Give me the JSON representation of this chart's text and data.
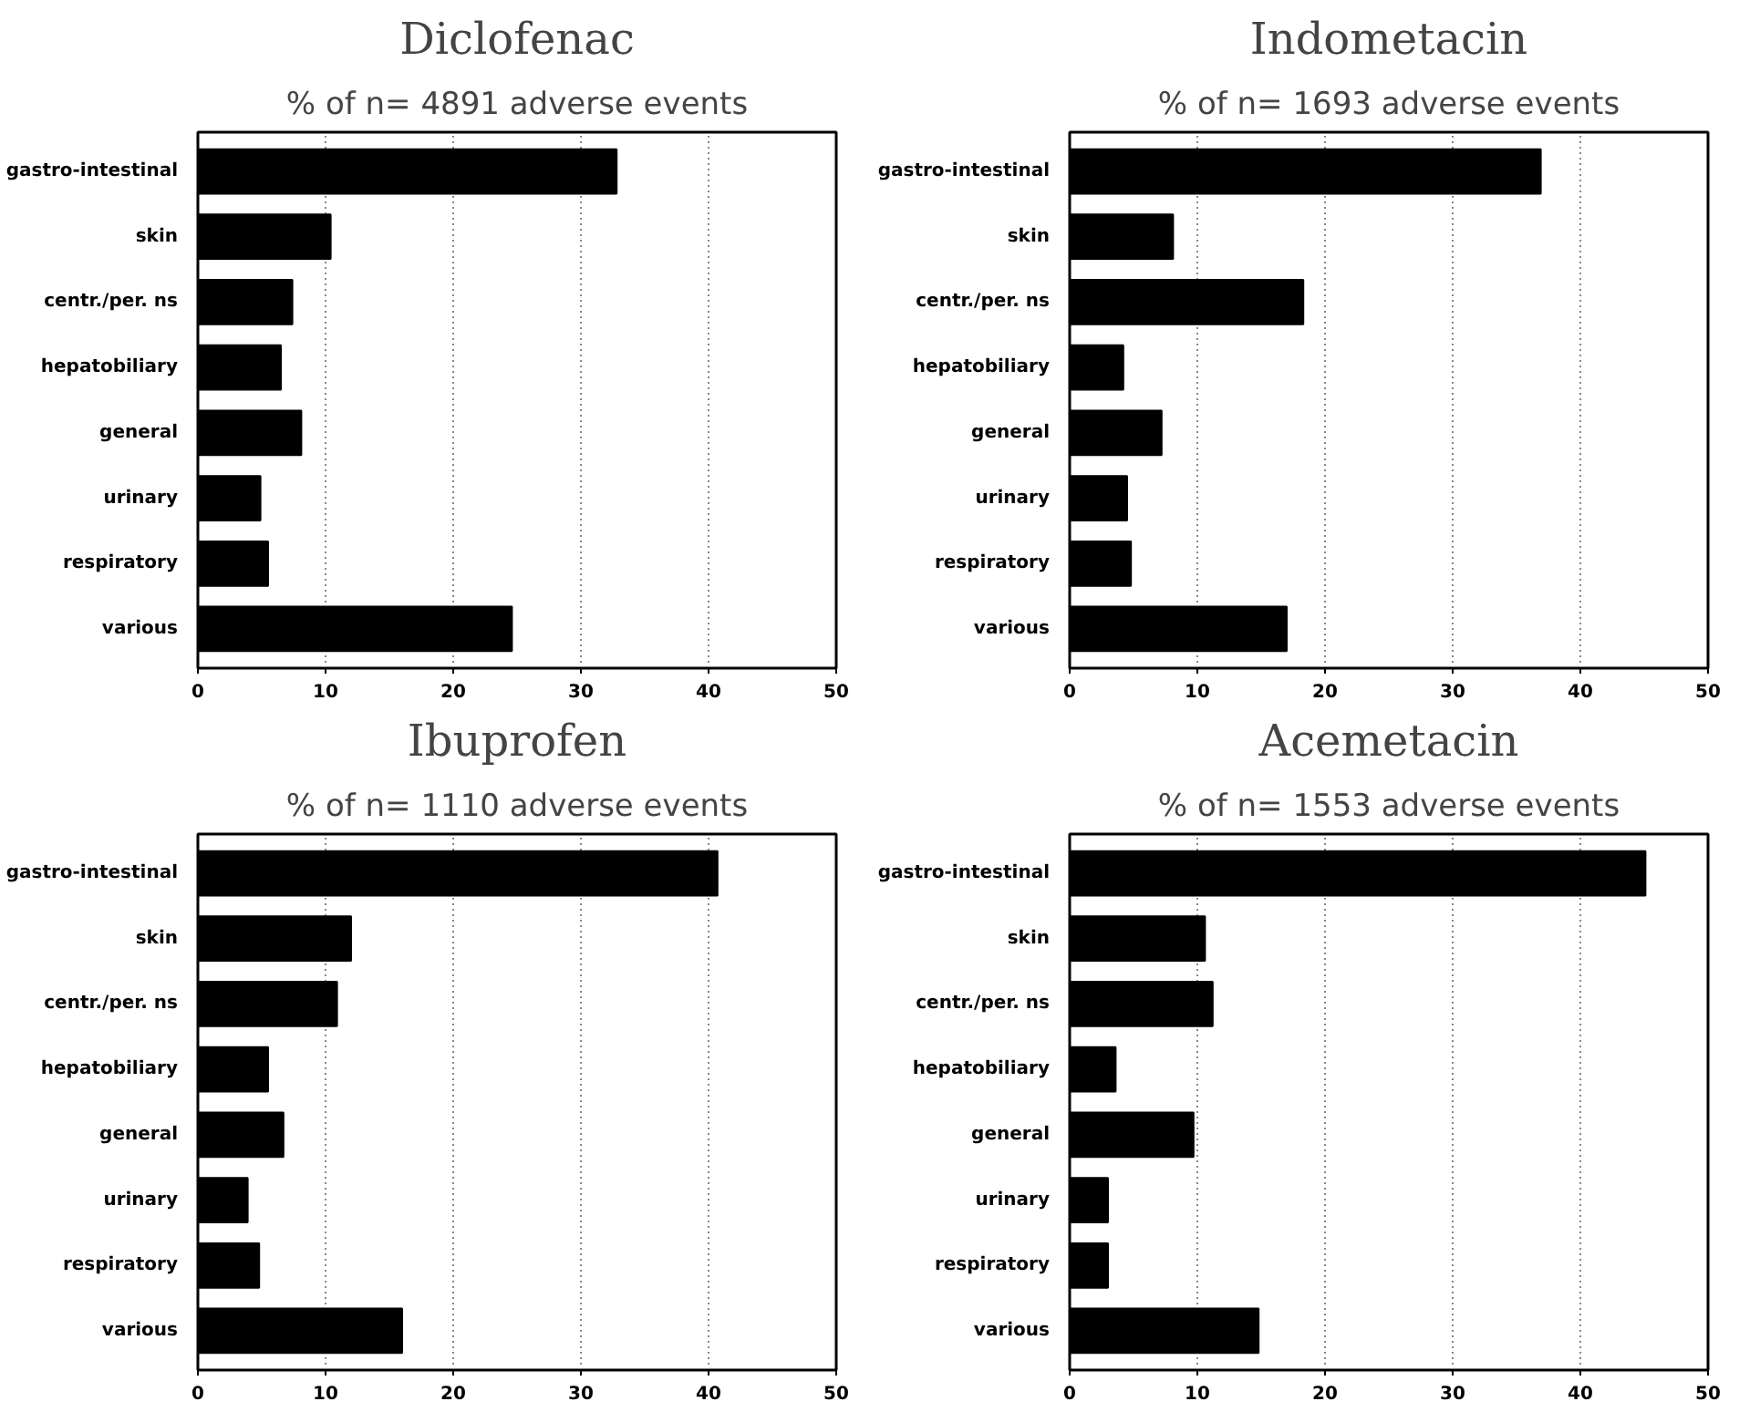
{
  "chart_data": [
    {
      "type": "bar",
      "orientation": "horizontal",
      "title": "Diclofenac",
      "subtitle": "% of n= 4891 adverse events",
      "categories": [
        "gastro-intestinal",
        "skin",
        "centr./per. ns",
        "hepatobiliary",
        "general",
        "urinary",
        "respiratory",
        "various"
      ],
      "values": [
        32.8,
        10.4,
        7.4,
        6.5,
        8.1,
        4.9,
        5.5,
        24.6
      ],
      "color": "#000000",
      "xlim": [
        0,
        50
      ],
      "xticks": [
        0,
        10,
        20,
        30,
        40,
        50
      ],
      "grid": "x"
    },
    {
      "type": "bar",
      "orientation": "horizontal",
      "title": "Indometacin",
      "subtitle": "% of n= 1693 adverse events",
      "categories": [
        "gastro-intestinal",
        "skin",
        "centr./per. ns",
        "hepatobiliary",
        "general",
        "urinary",
        "respiratory",
        "various"
      ],
      "values": [
        36.9,
        8.1,
        18.3,
        4.2,
        7.2,
        4.5,
        4.8,
        17.0
      ],
      "color": "#000000",
      "xlim": [
        0,
        50
      ],
      "xticks": [
        0,
        10,
        20,
        30,
        40,
        50
      ],
      "grid": "x"
    },
    {
      "type": "bar",
      "orientation": "horizontal",
      "title": "Ibuprofen",
      "subtitle": "% of n= 1110 adverse events",
      "categories": [
        "gastro-intestinal",
        "skin",
        "centr./per. ns",
        "hepatobiliary",
        "general",
        "urinary",
        "respiratory",
        "various"
      ],
      "values": [
        40.7,
        12.0,
        10.9,
        5.5,
        6.7,
        3.9,
        4.8,
        16.0
      ],
      "color": "#000000",
      "xlim": [
        0,
        50
      ],
      "xticks": [
        0,
        10,
        20,
        30,
        40,
        50
      ],
      "grid": "x"
    },
    {
      "type": "bar",
      "orientation": "horizontal",
      "title": "Acemetacin",
      "subtitle": "% of n= 1553 adverse events",
      "categories": [
        "gastro-intestinal",
        "skin",
        "centr./per. ns",
        "hepatobiliary",
        "general",
        "urinary",
        "respiratory",
        "various"
      ],
      "values": [
        45.1,
        10.6,
        11.2,
        3.6,
        9.7,
        3.0,
        3.0,
        14.8
      ],
      "color": "#000000",
      "xlim": [
        0,
        50
      ],
      "xticks": [
        0,
        10,
        20,
        30,
        40,
        50
      ],
      "grid": "x"
    }
  ]
}
